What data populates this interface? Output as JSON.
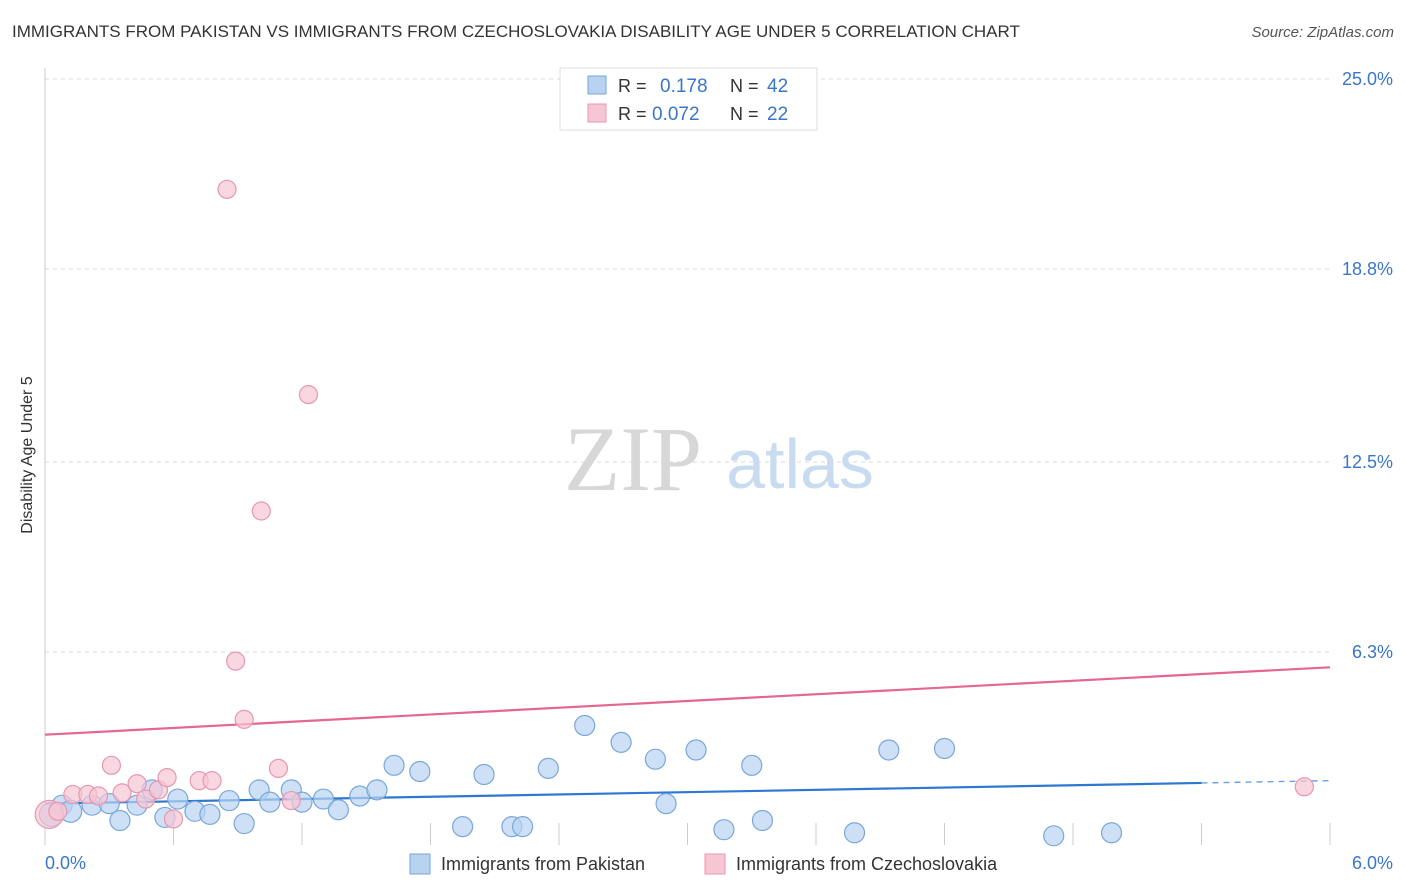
{
  "title": "IMMIGRANTS FROM PAKISTAN VS IMMIGRANTS FROM CZECHOSLOVAKIA DISABILITY AGE UNDER 5 CORRELATION CHART",
  "source": "Source: ZipAtlas.com",
  "watermark": {
    "zip": "ZIP",
    "atlas": "atlas"
  },
  "colors": {
    "blue_fill": "#b8d3f2",
    "blue_stroke": "#7aa6da",
    "blue_line": "#2e78d2",
    "pink_fill": "#f7c6d4",
    "pink_stroke": "#e896b0",
    "pink_line": "#e5668f",
    "tick_text": "#3a76c8",
    "grid": "#d9d9d9"
  },
  "legend": {
    "rows": [
      {
        "r_label": "R =",
        "r_value": "0.178",
        "n_label": "N =",
        "n_value": "42"
      },
      {
        "r_label": "R =",
        "r_value": "0.072",
        "n_label": "N =",
        "n_value": "22"
      }
    ]
  },
  "chart_data": {
    "type": "scatter",
    "title": "IMMIGRANTS FROM PAKISTAN VS IMMIGRANTS FROM CZECHOSLOVAKIA DISABILITY AGE UNDER 5 CORRELATION CHART",
    "xlabel": "",
    "ylabel": "Disability Age Under 5",
    "xlim": [
      0,
      6.0
    ],
    "ylim": [
      0,
      25.0
    ],
    "x_tick_labels": [
      "0.0%",
      "6.0%"
    ],
    "y_ticks": [
      6.3,
      12.5,
      18.8,
      25.0
    ],
    "y_tick_labels": [
      "6.3%",
      "12.5%",
      "18.8%",
      "25.0%"
    ],
    "grid": true,
    "legend_placement": "bottom",
    "series": [
      {
        "name": "Immigrants from Pakistan",
        "color": "blue",
        "R": 0.178,
        "N": 42,
        "trend": {
          "x0": 0.0,
          "y0": 1.35,
          "x1": 6.0,
          "y1": 2.1,
          "solid_until": 5.4
        },
        "points": [
          [
            0.03,
            1.0
          ],
          [
            0.08,
            1.3
          ],
          [
            0.12,
            1.1
          ],
          [
            0.22,
            1.3
          ],
          [
            0.3,
            1.35
          ],
          [
            0.35,
            0.8
          ],
          [
            0.43,
            1.3
          ],
          [
            0.5,
            1.8
          ],
          [
            0.56,
            0.9
          ],
          [
            0.62,
            1.5
          ],
          [
            0.7,
            1.1
          ],
          [
            0.77,
            1.0
          ],
          [
            0.86,
            1.45
          ],
          [
            0.93,
            0.7
          ],
          [
            1.0,
            1.8
          ],
          [
            1.05,
            1.4
          ],
          [
            1.15,
            1.8
          ],
          [
            1.2,
            1.4
          ],
          [
            1.3,
            1.5
          ],
          [
            1.37,
            1.15
          ],
          [
            1.47,
            1.6
          ],
          [
            1.55,
            1.8
          ],
          [
            1.63,
            2.6
          ],
          [
            1.75,
            2.4
          ],
          [
            1.95,
            0.6
          ],
          [
            2.05,
            2.3
          ],
          [
            2.18,
            0.6
          ],
          [
            2.23,
            0.6
          ],
          [
            2.35,
            2.5
          ],
          [
            2.52,
            3.9
          ],
          [
            2.69,
            3.35
          ],
          [
            2.85,
            2.8
          ],
          [
            2.9,
            1.35
          ],
          [
            3.04,
            3.1
          ],
          [
            3.17,
            0.5
          ],
          [
            3.3,
            2.6
          ],
          [
            3.35,
            0.8
          ],
          [
            3.78,
            0.4
          ],
          [
            3.94,
            3.1
          ],
          [
            4.2,
            3.15
          ],
          [
            4.71,
            0.3
          ],
          [
            4.98,
            0.4
          ]
        ]
      },
      {
        "name": "Immigrants from Czechoslovakia",
        "color": "pink",
        "R": 0.072,
        "N": 22,
        "trend": {
          "x0": 0.0,
          "y0": 3.6,
          "x1": 6.0,
          "y1": 5.8
        },
        "points": [
          [
            0.02,
            1.0
          ],
          [
            0.06,
            1.1
          ],
          [
            0.13,
            1.65
          ],
          [
            0.2,
            1.65
          ],
          [
            0.25,
            1.6
          ],
          [
            0.31,
            2.6
          ],
          [
            0.36,
            1.7
          ],
          [
            0.43,
            2.0
          ],
          [
            0.47,
            1.5
          ],
          [
            0.53,
            1.8
          ],
          [
            0.57,
            2.2
          ],
          [
            0.6,
            0.85
          ],
          [
            0.72,
            2.1
          ],
          [
            0.78,
            2.1
          ],
          [
            0.85,
            21.4
          ],
          [
            0.89,
            6.0
          ],
          [
            0.93,
            4.1
          ],
          [
            1.01,
            10.9
          ],
          [
            1.09,
            2.5
          ],
          [
            1.15,
            1.45
          ],
          [
            1.23,
            14.7
          ],
          [
            5.88,
            1.9
          ]
        ]
      }
    ]
  }
}
